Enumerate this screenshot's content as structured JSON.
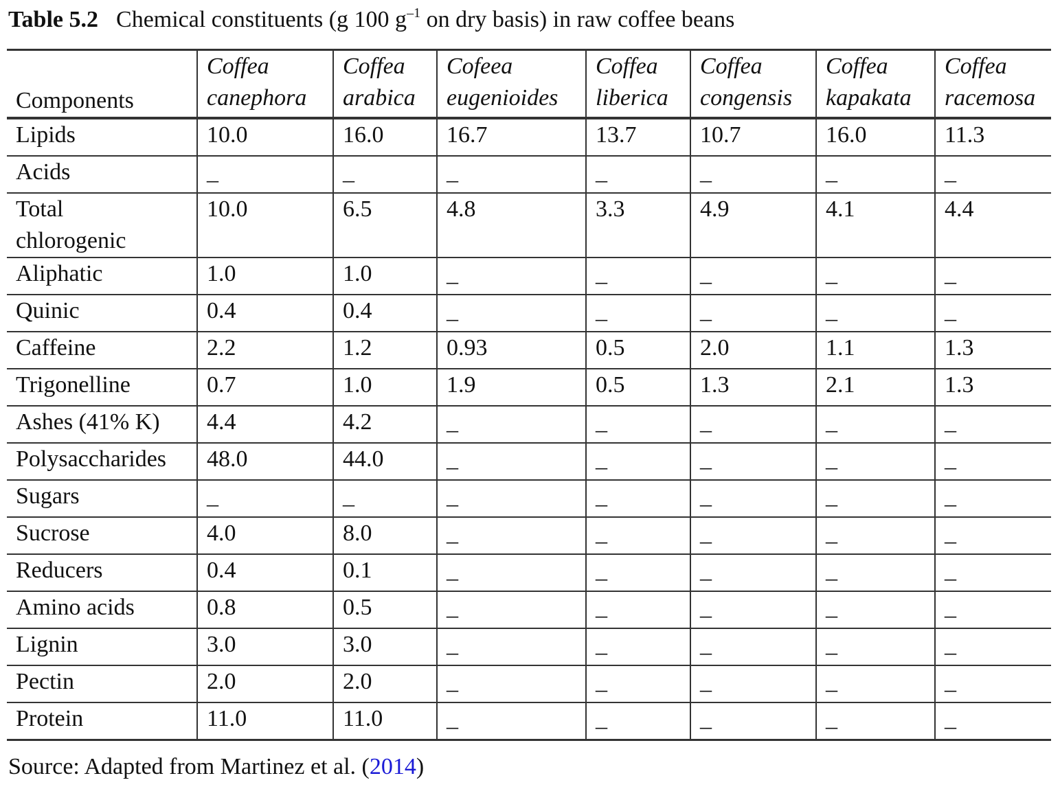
{
  "caption": {
    "label": "Table 5.2",
    "text_before": "Chemical constituents (g 100 g",
    "superscript": "–1",
    "text_after": " on dry basis) in raw coffee beans"
  },
  "table": {
    "headers": [
      "Components",
      "Coffea\ncanephora",
      "Coffea\narabica",
      "Cofeea\neugenioides",
      "Coffea\nliberica",
      "Coffea\ncongensis",
      "Coffea\nkapakata",
      "Coffea\nracemosa"
    ],
    "rows": [
      [
        "Lipids",
        "10.0",
        "16.0",
        "16.7",
        "13.7",
        "10.7",
        "16.0",
        "11.3"
      ],
      [
        "Acids",
        "_",
        "_",
        "_",
        "_",
        "_",
        "_",
        "_"
      ],
      [
        "Total\nchlorogenic",
        "10.0",
        "6.5",
        "4.8",
        "3.3",
        "4.9",
        "4.1",
        "4.4"
      ],
      [
        "Aliphatic",
        "1.0",
        "1.0",
        "_",
        "_",
        "_",
        "_",
        "_"
      ],
      [
        "Quinic",
        "0.4",
        "0.4",
        "_",
        "_",
        "_",
        "_",
        "_"
      ],
      [
        "Caffeine",
        "2.2",
        "1.2",
        "0.93",
        "0.5",
        "2.0",
        "1.1",
        "1.3"
      ],
      [
        "Trigonelline",
        "0.7",
        "1.0",
        "1.9",
        "0.5",
        "1.3",
        "2.1",
        "1.3"
      ],
      [
        "Ashes (41% K)",
        "4.4",
        "4.2",
        "_",
        "_",
        "_",
        "_",
        "_"
      ],
      [
        "Polysaccharides",
        "48.0",
        "44.0",
        "_",
        "_",
        "_",
        "_",
        "_"
      ],
      [
        "Sugars",
        "_",
        "_",
        "_",
        "_",
        "_",
        "_",
        "_"
      ],
      [
        "Sucrose",
        "4.0",
        "8.0",
        "_",
        "_",
        "_",
        "_",
        "_"
      ],
      [
        "Reducers",
        "0.4",
        "0.1",
        "_",
        "_",
        "_",
        "_",
        "_"
      ],
      [
        "Amino acids",
        "0.8",
        "0.5",
        "_",
        "_",
        "_",
        "_",
        "_"
      ],
      [
        "Lignin",
        "3.0",
        "3.0",
        "_",
        "_",
        "_",
        "_",
        "_"
      ],
      [
        "Pectin",
        "2.0",
        "2.0",
        "_",
        "_",
        "_",
        "_",
        "_"
      ],
      [
        "Protein",
        "11.0",
        "11.0",
        "_",
        "_",
        "_",
        "_",
        "_"
      ]
    ]
  },
  "source": {
    "text_before": "Source: Adapted from Martinez et al. (",
    "link": "2014",
    "text_after": ")"
  }
}
